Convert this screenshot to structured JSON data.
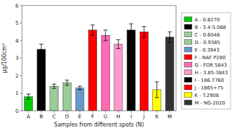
{
  "chart_data": {
    "type": "bar",
    "xlabel": "Samples from different spots (N)",
    "ylabel": "µg/100cm²",
    "categories": [
      "A",
      "B",
      "C",
      "D",
      "E",
      "F",
      "G",
      "H",
      "I",
      "J",
      "K",
      "M"
    ],
    "series": [
      {
        "name": "A - 0.8270",
        "color": "#00cc00",
        "values": [
          0.8,
          null,
          null,
          null,
          null,
          null,
          null,
          null,
          null,
          null,
          null,
          null
        ],
        "errors": [
          0.15,
          null,
          null,
          null,
          null,
          null,
          null,
          null,
          null,
          null,
          null,
          null
        ]
      },
      {
        "name": "B - 3.4-5.068",
        "color": "#000000",
        "values": [
          null,
          3.5,
          null,
          null,
          null,
          null,
          null,
          null,
          null,
          null,
          null,
          null
        ],
        "errors": [
          null,
          0.3,
          null,
          null,
          null,
          null,
          null,
          null,
          null,
          null,
          null,
          null
        ]
      },
      {
        "name": "C - 0.6048",
        "color": "#99cc99",
        "values": [
          null,
          null,
          1.4,
          null,
          null,
          null,
          null,
          null,
          null,
          null,
          null,
          null
        ],
        "errors": [
          null,
          null,
          0.12,
          null,
          null,
          null,
          null,
          null,
          null,
          null,
          null,
          null
        ]
      },
      {
        "name": "D - 0.9385",
        "color": "#99cc99",
        "values": [
          null,
          null,
          null,
          1.6,
          null,
          null,
          null,
          null,
          null,
          null,
          null,
          null
        ],
        "errors": [
          null,
          null,
          null,
          0.15,
          null,
          null,
          null,
          null,
          null,
          null,
          null,
          null
        ]
      },
      {
        "name": "E - 0.3943",
        "color": "#6699cc",
        "values": [
          null,
          null,
          null,
          null,
          1.3,
          null,
          null,
          null,
          null,
          null,
          null,
          null
        ],
        "errors": [
          null,
          null,
          null,
          null,
          0.1,
          null,
          null,
          null,
          null,
          null,
          null,
          null
        ]
      },
      {
        "name": "F - NAF P280",
        "color": "#ff0000",
        "values": [
          null,
          null,
          null,
          null,
          null,
          4.6,
          null,
          null,
          null,
          null,
          null,
          null
        ],
        "errors": [
          null,
          null,
          null,
          null,
          null,
          0.3,
          null,
          null,
          null,
          null,
          null,
          null
        ]
      },
      {
        "name": "G - FOR 5843",
        "color": "#ff69b4",
        "values": [
          null,
          null,
          null,
          null,
          null,
          null,
          4.3,
          null,
          null,
          null,
          null,
          null
        ],
        "errors": [
          null,
          null,
          null,
          null,
          null,
          null,
          0.3,
          null,
          null,
          null,
          null,
          null
        ]
      },
      {
        "name": "H - 3.85-3843",
        "color": "#ff99cc",
        "values": [
          null,
          null,
          null,
          null,
          null,
          null,
          null,
          3.8,
          null,
          null,
          null,
          null
        ],
        "errors": [
          null,
          null,
          null,
          null,
          null,
          null,
          null,
          0.25,
          null,
          null,
          null,
          null
        ]
      },
      {
        "name": "I - 186.7760",
        "color": "#000000",
        "values": [
          null,
          null,
          null,
          null,
          null,
          null,
          null,
          null,
          4.6,
          null,
          null,
          null
        ],
        "errors": [
          null,
          null,
          null,
          null,
          null,
          null,
          null,
          null,
          0.35,
          null,
          null,
          null
        ]
      },
      {
        "name": "J - 1865+75",
        "color": "#ff0000",
        "values": [
          null,
          null,
          null,
          null,
          null,
          null,
          null,
          null,
          null,
          4.5,
          null,
          null
        ],
        "errors": [
          null,
          null,
          null,
          null,
          null,
          null,
          null,
          null,
          null,
          0.3,
          null,
          null
        ]
      },
      {
        "name": "K - T.2908",
        "color": "#ffff00",
        "values": [
          null,
          null,
          null,
          null,
          null,
          null,
          null,
          null,
          null,
          null,
          1.2,
          null
        ],
        "errors": [
          null,
          null,
          null,
          null,
          null,
          null,
          null,
          null,
          null,
          null,
          0.45,
          null
        ]
      },
      {
        "name": "M - NG-2020",
        "color": "#333333",
        "values": [
          null,
          null,
          null,
          null,
          null,
          null,
          null,
          null,
          null,
          null,
          null,
          4.2
        ],
        "errors": [
          null,
          null,
          null,
          null,
          null,
          null,
          null,
          null,
          null,
          null,
          null,
          0.3
        ]
      }
    ],
    "ylim": [
      0,
      6
    ],
    "yticks": [
      0,
      1,
      2,
      3,
      4,
      5,
      6
    ],
    "grid": false,
    "legend": "right"
  }
}
